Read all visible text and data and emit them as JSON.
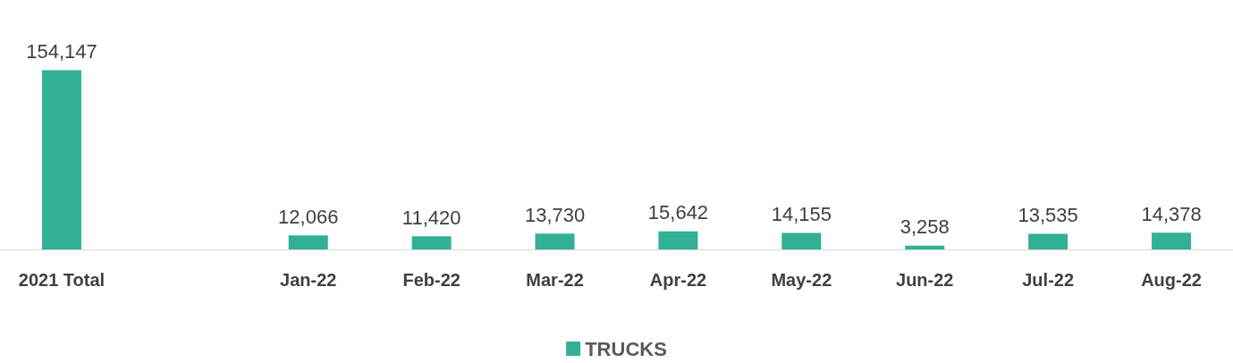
{
  "chart_data": {
    "type": "bar",
    "categories": [
      "2021 Total",
      null,
      "Jan-22",
      "Feb-22",
      "Mar-22",
      "Apr-22",
      "May-22",
      "Jun-22",
      "Jul-22",
      "Aug-22"
    ],
    "series": [
      {
        "name": "TRUCKS",
        "color": "#31b096",
        "values": [
          154147,
          null,
          12066,
          11420,
          13730,
          15642,
          14155,
          3258,
          13535,
          14378
        ],
        "value_labels": [
          "154,147",
          null,
          "12,066",
          "11,420",
          "13,730",
          "15,642",
          "14,155",
          "3,258",
          "13,535",
          "14,378"
        ]
      }
    ],
    "legend": "bottom"
  }
}
